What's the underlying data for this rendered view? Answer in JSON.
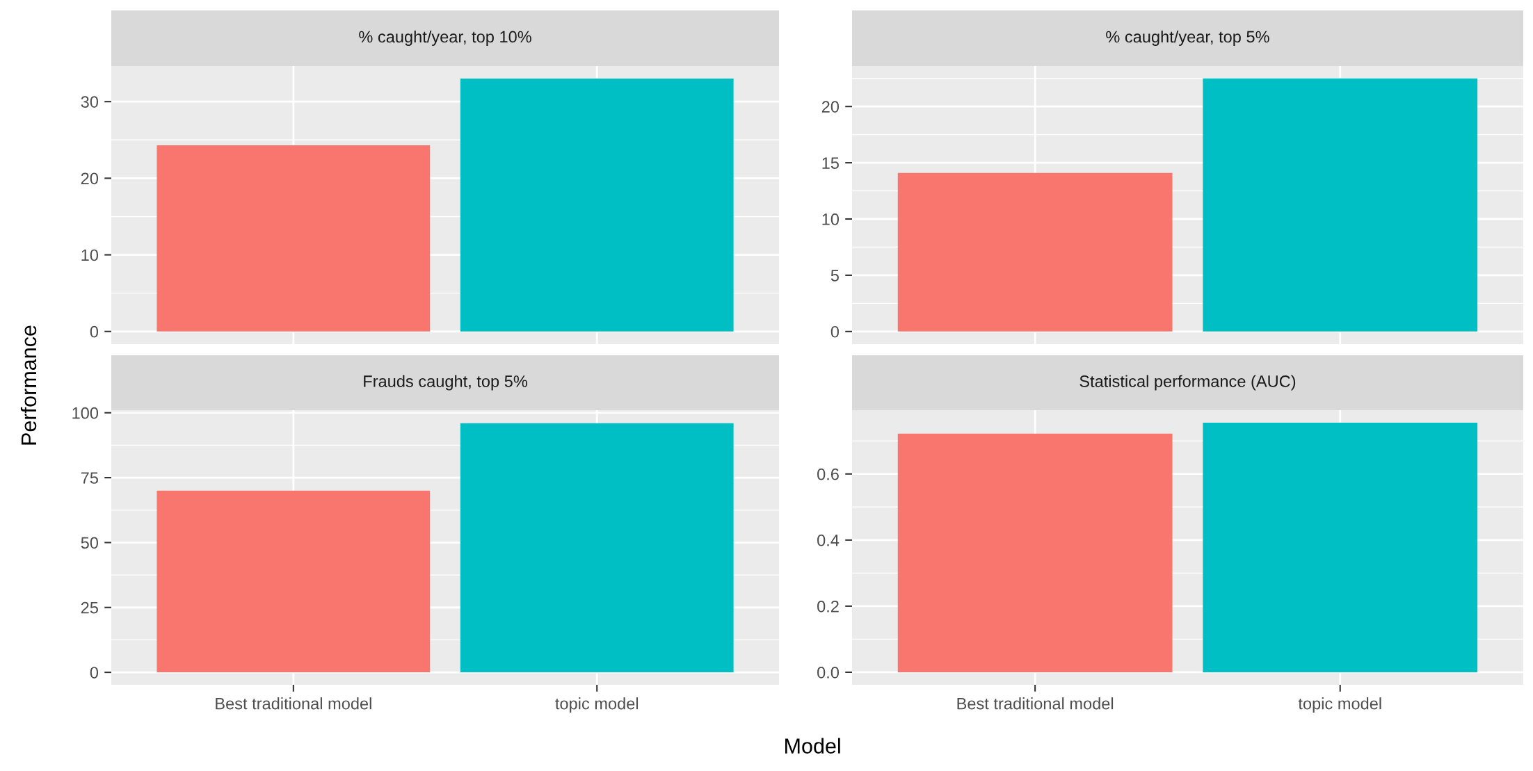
{
  "chart_data": [
    {
      "type": "bar",
      "title": "% caught/year, top 10%",
      "ylabel": "Performance",
      "categories": [
        null,
        null
      ],
      "values": [
        24.3,
        33.0
      ],
      "colors": [
        "#f8766d",
        "#00bfc4"
      ],
      "ylim": [
        -1.65,
        34.65
      ],
      "yticks": [
        0,
        10,
        20,
        30
      ],
      "grid": true,
      "tick_labels": "y"
    },
    {
      "type": "bar",
      "title": "% caught/year, top 5%",
      "categories": [
        null,
        null
      ],
      "values": [
        14.1,
        22.5
      ],
      "colors": [
        "#f8766d",
        "#00bfc4"
      ],
      "ylim": [
        -1.12,
        23.6
      ],
      "yticks": [
        0,
        5,
        10,
        15,
        20
      ],
      "grid": true,
      "tick_labels": "y"
    },
    {
      "type": "bar",
      "title": "Frauds caught, top 5%",
      "xlabel": "Model",
      "categories": [
        "Best traditional model",
        "topic model"
      ],
      "values": [
        70,
        96
      ],
      "colors": [
        "#f8766d",
        "#00bfc4"
      ],
      "ylim": [
        -4.8,
        101
      ],
      "yticks": [
        0,
        25,
        50,
        75,
        100
      ],
      "grid": true
    },
    {
      "type": "bar",
      "title": "Statistical performance (AUC)",
      "categories": [
        "Best traditional model",
        "topic model"
      ],
      "values": [
        0.722,
        0.755
      ],
      "colors": [
        "#f8766d",
        "#00bfc4"
      ],
      "ylim": [
        -0.038,
        0.793
      ],
      "yticks": [
        {
          "value": 0,
          "label": "0.0"
        },
        {
          "value": 0.2,
          "label": "0.2"
        },
        {
          "value": 0.4,
          "label": "0.4"
        },
        {
          "value": 0.6,
          "label": "0.6"
        }
      ],
      "grid": true
    }
  ]
}
